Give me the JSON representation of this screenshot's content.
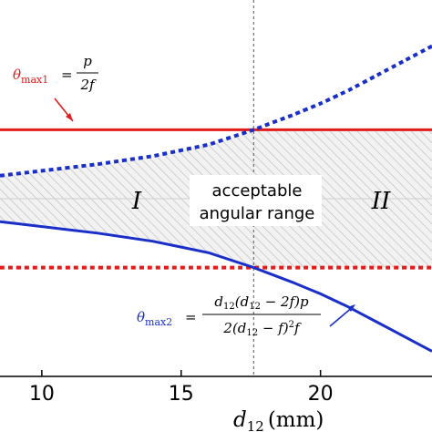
{
  "chart_data": {
    "type": "line",
    "xlabel": {
      "main": "d",
      "sub": "12",
      "unit": "(mm)"
    },
    "xlim": [
      8.5,
      24.0
    ],
    "ylim": [
      -1.0,
      1.0
    ],
    "x_ticks": [
      "10",
      "15",
      "20"
    ],
    "x_tick_values": [
      10,
      15,
      20
    ],
    "crossing_x": 17.6,
    "series": [
      {
        "name": "θmax1 upper",
        "style": "solid",
        "color": "#e31b1b",
        "x": [
          8.5,
          24.0
        ],
        "y": [
          0.42,
          0.42
        ]
      },
      {
        "name": "θmax1 lower",
        "style": "dotted",
        "color": "#e31b1b",
        "x": [
          8.5,
          24.0
        ],
        "y": [
          -0.42,
          -0.42
        ]
      },
      {
        "name": "θmax2 upper",
        "style": "dotted",
        "color": "#1a2fc8",
        "x": [
          8.5,
          10,
          12,
          14,
          16,
          17.6,
          19,
          20,
          21,
          22,
          23,
          24
        ],
        "y": [
          0.14,
          0.17,
          0.21,
          0.26,
          0.33,
          0.42,
          0.51,
          0.58,
          0.66,
          0.75,
          0.84,
          0.93
        ]
      },
      {
        "name": "θmax2 lower",
        "style": "solid",
        "color": "#1a2fc8",
        "x": [
          8.5,
          10,
          12,
          14,
          16,
          17.6,
          19,
          20,
          21,
          22,
          23,
          24
        ],
        "y": [
          -0.14,
          -0.17,
          -0.21,
          -0.26,
          -0.33,
          -0.42,
          -0.51,
          -0.58,
          -0.66,
          -0.75,
          -0.84,
          -0.93
        ]
      }
    ],
    "regions": {
      "left": "I",
      "right": "II",
      "center_line1": "acceptable",
      "center_line2": "angular range"
    },
    "annotations": {
      "theta_max1": {
        "lhs": "θ",
        "lhs_sub": "max1",
        "num": "p",
        "den": "2f"
      },
      "theta_max2": {
        "lhs": "θ",
        "lhs_sub": "max2",
        "num": "d12(d12 − 2f)p",
        "den": "2(d12 − f)2f"
      }
    }
  }
}
